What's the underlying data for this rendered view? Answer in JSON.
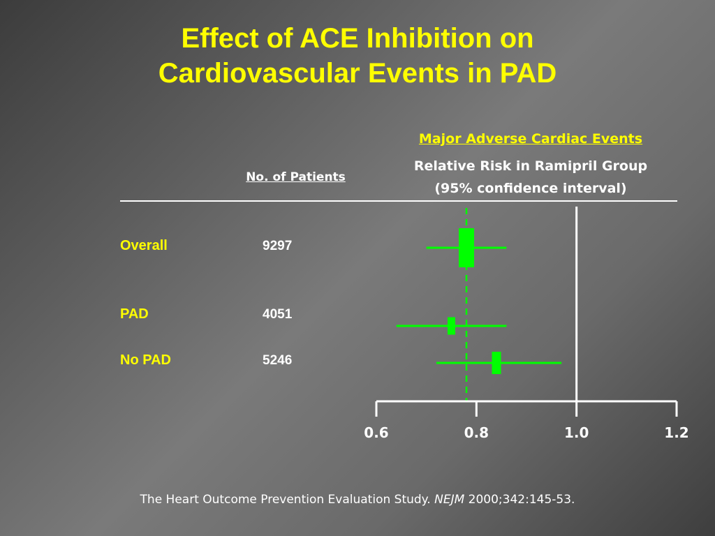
{
  "slide": {
    "title_line1": "Effect of ACE Inhibition on",
    "title_line2": "Cardiovascular Events in PAD",
    "footer_main": "The Heart Outcome Prevention Evaluation Study.",
    "footer_journal": "NEJM",
    "footer_citation": "2000;342:145-53."
  },
  "headers": {
    "outcome": "Major Adverse Cardiac Events",
    "measure_line1": "Relative Risk in Ramipril Group",
    "measure_line2": "(95% confidence interval)",
    "patients": "No. of Patients"
  },
  "colors": {
    "title": "#ffff00",
    "marker": "#00ff00",
    "text": "#ffffff"
  },
  "chart_data": {
    "type": "forest",
    "xlim": [
      0.6,
      1.2
    ],
    "xticks": [
      0.6,
      0.8,
      1.0,
      1.2
    ],
    "xtick_labels": [
      "0.6",
      "0.8",
      "1.0",
      "1.2"
    ],
    "reference_line": 1.0,
    "overall_estimate_line": 0.78,
    "rows": [
      {
        "label": "Overall",
        "n": "9297",
        "rr": 0.78,
        "ci_low": 0.7,
        "ci_high": 0.86
      },
      {
        "label": "PAD",
        "n": "4051",
        "rr": 0.75,
        "ci_low": 0.64,
        "ci_high": 0.86
      },
      {
        "label": "No PAD",
        "n": "5246",
        "rr": 0.84,
        "ci_low": 0.72,
        "ci_high": 0.97
      }
    ]
  }
}
